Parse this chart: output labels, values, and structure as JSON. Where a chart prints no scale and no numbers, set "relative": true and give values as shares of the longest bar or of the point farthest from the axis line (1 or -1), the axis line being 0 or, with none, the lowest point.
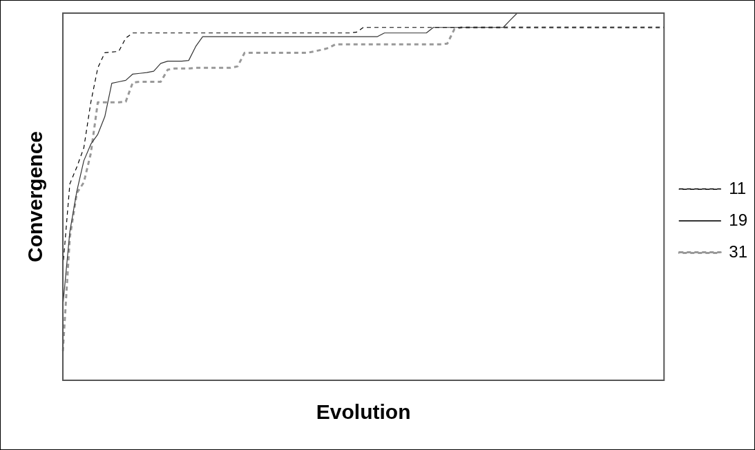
{
  "chart_data": {
    "type": "line",
    "xlabel": "Evolution",
    "ylabel": "Convergence",
    "relative": true,
    "legend": "right",
    "marker": "none",
    "categories": [
      null,
      null,
      null,
      null,
      null,
      null,
      null,
      null,
      null,
      null,
      null,
      null,
      null,
      null,
      null,
      null,
      null,
      null,
      null,
      null,
      null,
      null,
      null,
      null,
      null,
      null,
      null,
      null,
      null,
      null,
      null,
      null,
      null,
      null,
      null,
      null,
      null,
      null,
      null,
      null,
      null,
      null,
      null,
      null,
      null,
      null,
      null,
      null,
      null,
      null,
      null,
      null,
      null,
      null,
      null,
      null,
      null,
      null,
      null,
      null,
      null,
      null,
      null,
      null,
      null,
      null,
      null,
      null,
      null,
      null,
      null,
      null,
      null,
      null,
      null,
      null,
      null,
      null,
      null,
      null,
      null,
      null,
      null,
      null,
      null,
      null,
      null
    ],
    "series": [
      {
        "name": "11",
        "color": "#000000",
        "line_style": "dashed",
        "values": [
          0.307,
          0.535,
          0.581,
          0.633,
          0.757,
          0.851,
          0.892,
          0.894,
          0.896,
          0.932,
          0.946,
          0.946,
          0.946,
          0.946,
          0.946,
          0.946,
          0.946,
          0.946,
          0.946,
          0.946,
          0.946,
          0.946,
          0.946,
          0.946,
          0.946,
          0.946,
          0.946,
          0.946,
          0.946,
          0.946,
          0.946,
          0.946,
          0.946,
          0.946,
          0.946,
          0.946,
          0.946,
          0.946,
          0.946,
          0.946,
          0.946,
          0.946,
          0.948,
          0.961,
          0.961,
          0.961,
          0.961,
          0.961,
          0.961,
          0.961,
          0.961,
          0.961,
          0.961,
          0.961,
          0.961,
          0.961,
          0.961,
          0.961,
          0.961,
          0.961,
          0.961,
          0.961,
          0.961,
          0.961,
          0.961,
          0.961,
          0.961,
          0.961,
          0.961,
          0.961,
          0.961,
          0.961,
          0.961,
          0.961,
          0.961,
          0.961,
          0.961,
          0.961,
          0.961,
          0.961,
          0.961,
          0.961,
          0.961,
          0.961,
          0.961,
          0.961,
          0.961
        ]
      },
      {
        "name": "19",
        "color": "#333333",
        "line_style": "solid",
        "values": [
          0.203,
          0.405,
          0.515,
          0.598,
          0.643,
          0.67,
          0.718,
          0.809,
          0.813,
          0.817,
          0.834,
          0.836,
          0.838,
          0.842,
          0.863,
          0.869,
          0.869,
          0.869,
          0.871,
          0.909,
          0.936,
          0.936,
          0.936,
          0.936,
          0.936,
          0.936,
          0.936,
          0.936,
          0.936,
          0.936,
          0.936,
          0.936,
          0.936,
          0.936,
          0.936,
          0.936,
          0.936,
          0.936,
          0.936,
          0.936,
          0.936,
          0.936,
          0.936,
          0.936,
          0.936,
          0.936,
          0.946,
          0.946,
          0.946,
          0.946,
          0.946,
          0.946,
          0.946,
          0.961,
          0.961,
          0.961,
          0.961,
          0.961,
          0.961,
          0.961,
          0.961,
          0.961,
          0.961,
          0.961,
          0.981,
          1,
          1,
          1,
          1,
          1,
          1,
          1,
          1,
          1,
          1,
          1,
          1,
          1,
          1,
          1,
          1,
          1,
          1,
          1,
          1,
          1,
          1
        ]
      },
      {
        "name": "31",
        "color": "#999999",
        "line_style": "dashed",
        "values": [
          0.079,
          0.39,
          0.51,
          0.539,
          0.618,
          0.757,
          0.757,
          0.757,
          0.757,
          0.759,
          0.811,
          0.813,
          0.813,
          0.813,
          0.813,
          0.846,
          0.849,
          0.849,
          0.849,
          0.851,
          0.851,
          0.851,
          0.851,
          0.851,
          0.851,
          0.855,
          0.892,
          0.892,
          0.892,
          0.892,
          0.892,
          0.892,
          0.892,
          0.892,
          0.892,
          0.892,
          0.896,
          0.9,
          0.905,
          0.915,
          0.915,
          0.915,
          0.915,
          0.915,
          0.915,
          0.915,
          0.915,
          0.915,
          0.915,
          0.915,
          0.915,
          0.915,
          0.915,
          0.915,
          0.915,
          0.917,
          0.956,
          0.961,
          0.961,
          0.961,
          0.961,
          0.961,
          0.961,
          0.961,
          0.961,
          0.961,
          0.961,
          0.961,
          0.961,
          0.961,
          0.961,
          0.961,
          0.961,
          0.961,
          0.961,
          0.961,
          0.961,
          0.961,
          0.961,
          0.961,
          0.961,
          0.961,
          0.961,
          0.961,
          0.961,
          0.961,
          0.961
        ]
      }
    ]
  }
}
